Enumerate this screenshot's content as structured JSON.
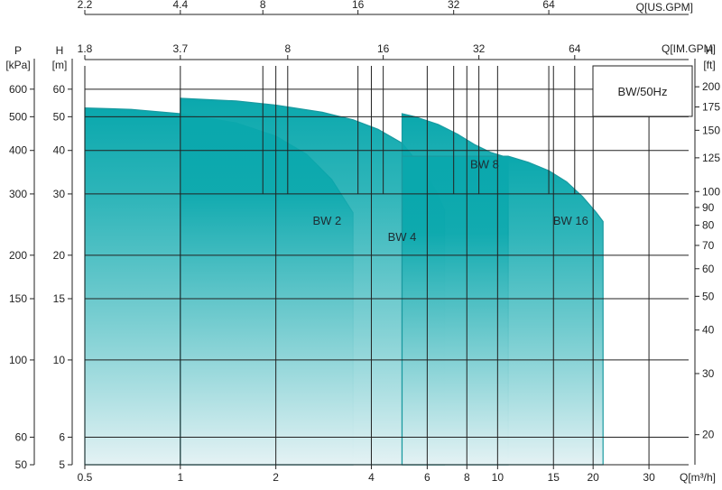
{
  "chart_data": {
    "type": "area",
    "legend": "BW/50Hz",
    "x_scale": "log",
    "y_scale": "log",
    "axes": {
      "flow_m3h": {
        "label": "Q[m³/h]",
        "position": "bottom",
        "ticks": [
          0.5,
          1,
          2,
          4,
          6,
          8,
          10,
          15,
          20,
          30
        ]
      },
      "flow_us_gpm": {
        "label": "Q[US.GPM]",
        "position": "top",
        "ticks": [
          {
            "label": "2.2",
            "at_m3h": 0.5
          },
          {
            "label": "4.4",
            "at_m3h": 1
          },
          {
            "label": "8",
            "at_m3h": 1.82
          },
          {
            "label": "16",
            "at_m3h": 3.63
          },
          {
            "label": "32",
            "at_m3h": 7.27
          },
          {
            "label": "64",
            "at_m3h": 14.5
          }
        ]
      },
      "flow_im_gpm": {
        "label": "Q[IM.GPM]",
        "position": "top",
        "ticks": [
          {
            "label": "1.8",
            "at_m3h": 0.5
          },
          {
            "label": "3.7",
            "at_m3h": 1
          },
          {
            "label": "8",
            "at_m3h": 2.18
          },
          {
            "label": "16",
            "at_m3h": 4.36
          },
          {
            "label": "32",
            "at_m3h": 8.73
          },
          {
            "label": "64",
            "at_m3h": 17.5
          }
        ]
      },
      "head_m": {
        "label": "H",
        "unit": "[m]",
        "position": "left",
        "ticks": [
          5,
          6,
          10,
          15,
          20,
          30,
          40,
          50,
          60
        ]
      },
      "pressure_kpa": {
        "label": "P",
        "unit": "[kPa]",
        "position": "left",
        "ticks": [
          {
            "label": "50",
            "at_m": 5
          },
          {
            "label": "60",
            "at_m": 6
          },
          {
            "label": "100",
            "at_m": 10
          },
          {
            "label": "150",
            "at_m": 15
          },
          {
            "label": "200",
            "at_m": 20
          },
          {
            "label": "300",
            "at_m": 30
          },
          {
            "label": "400",
            "at_m": 40
          },
          {
            "label": "500",
            "at_m": 50
          },
          {
            "label": "600",
            "at_m": 60
          }
        ]
      },
      "head_ft": {
        "label": "H",
        "unit": "[ft]",
        "position": "right",
        "ticks": [
          {
            "label": "20",
            "at_m": 6.1
          },
          {
            "label": "30",
            "at_m": 9.14
          },
          {
            "label": "40",
            "at_m": 12.19
          },
          {
            "label": "50",
            "at_m": 15.24
          },
          {
            "label": "60",
            "at_m": 18.29
          },
          {
            "label": "70",
            "at_m": 21.34
          },
          {
            "label": "80",
            "at_m": 24.38
          },
          {
            "label": "90",
            "at_m": 27.43
          },
          {
            "label": "100",
            "at_m": 30.48
          },
          {
            "label": "125",
            "at_m": 38.1
          },
          {
            "label": "150",
            "at_m": 45.72
          },
          {
            "label": "175",
            "at_m": 53.34
          },
          {
            "label": "200",
            "at_m": 60.96
          }
        ]
      }
    },
    "x_range_m3h": [
      0.5,
      40
    ],
    "y_range_m": [
      5,
      70
    ],
    "grid": true,
    "series": [
      {
        "name": "BW 2",
        "q_range_m3h": [
          0.5,
          3.5
        ],
        "top_curve": [
          [
            0.5,
            53
          ],
          [
            0.7,
            52.5
          ],
          [
            1,
            51
          ],
          [
            1.5,
            48
          ],
          [
            2,
            44
          ],
          [
            2.5,
            39
          ],
          [
            3,
            33
          ],
          [
            3.5,
            26.5
          ]
        ]
      },
      {
        "name": "BW 4",
        "q_range_m3h": [
          1,
          6.8
        ],
        "top_curve": [
          [
            1,
            56.5
          ],
          [
            1.5,
            55.5
          ],
          [
            2,
            54
          ],
          [
            2.8,
            51.5
          ],
          [
            3.5,
            49
          ],
          [
            4.2,
            46
          ],
          [
            5,
            42
          ],
          [
            5.8,
            35.5
          ],
          [
            6.4,
            30.5
          ],
          [
            6.8,
            27
          ]
        ]
      },
      {
        "name": "BW 8",
        "q_range_m3h": [
          5,
          10.8
        ],
        "top_curve": [
          [
            5,
            51
          ],
          [
            5.5,
            50
          ],
          [
            6.5,
            47.5
          ],
          [
            7.5,
            44.5
          ],
          [
            8.5,
            41.5
          ],
          [
            9.5,
            39.5
          ],
          [
            10.4,
            38.5
          ],
          [
            10.8,
            38.2
          ]
        ]
      },
      {
        "name": "BW 16",
        "q_range_m3h": [
          5,
          21.5
        ],
        "top_curve": [
          [
            10.8,
            38.5
          ],
          [
            12.5,
            37
          ],
          [
            14.5,
            35
          ],
          [
            16.5,
            32.5
          ],
          [
            18.5,
            29.5
          ],
          [
            20.5,
            26.5
          ],
          [
            21.5,
            25
          ]
        ]
      }
    ],
    "colors": {
      "fill_top": "#0aa8ad",
      "fill_bottom": "#e4f2f4",
      "outline": "#1a9aa0",
      "grid": "#222222"
    }
  }
}
